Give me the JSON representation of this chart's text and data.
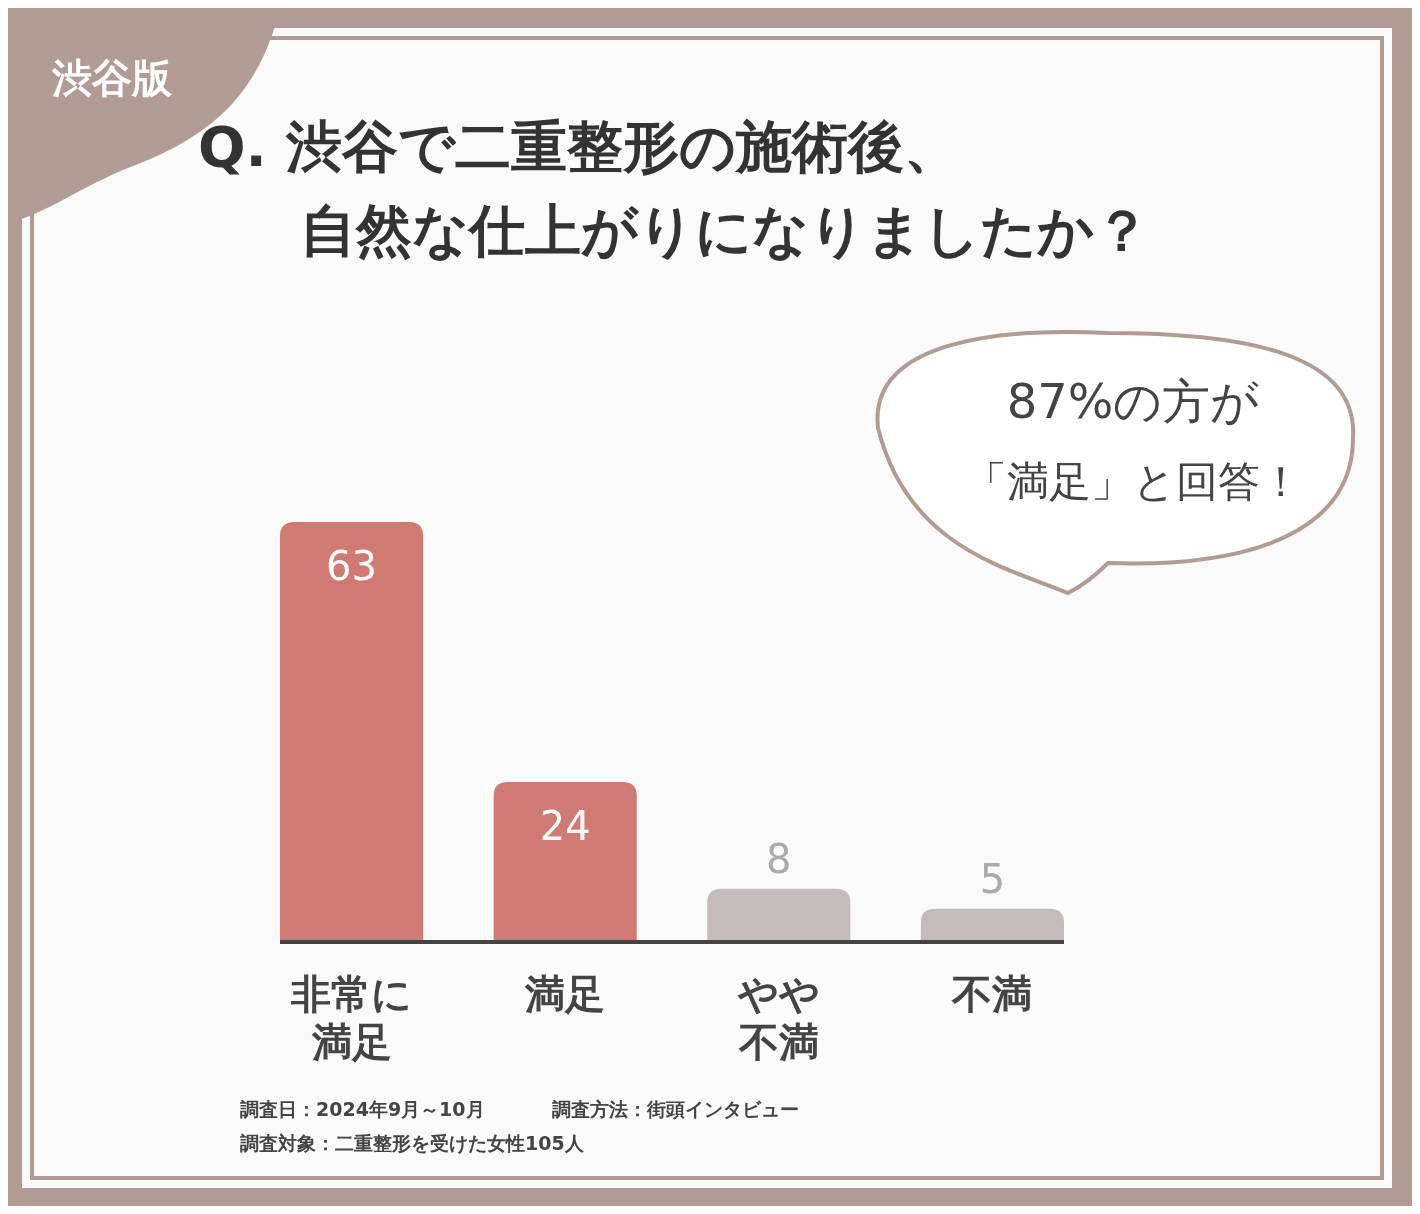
{
  "chart_data": {
    "type": "bar",
    "title": "Q. 渋谷で二重整形の施術後、自然な仕上がりになりましたか？",
    "categories": [
      "非常に満足",
      "満足",
      "やや不満",
      "不満"
    ],
    "values": [
      63,
      24,
      8,
      5
    ],
    "colors": [
      "#d07a74",
      "#d07a74",
      "#c4bcba",
      "#c4bcba"
    ],
    "data_labels": true,
    "annotations": [
      "渋谷版",
      "87%の方が「満足」と回答！",
      "調査日：2024年9月～10月",
      "調査方法：街頭インタビュー",
      "調査対象：二重整形を受けた女性105人"
    ]
  }
}
